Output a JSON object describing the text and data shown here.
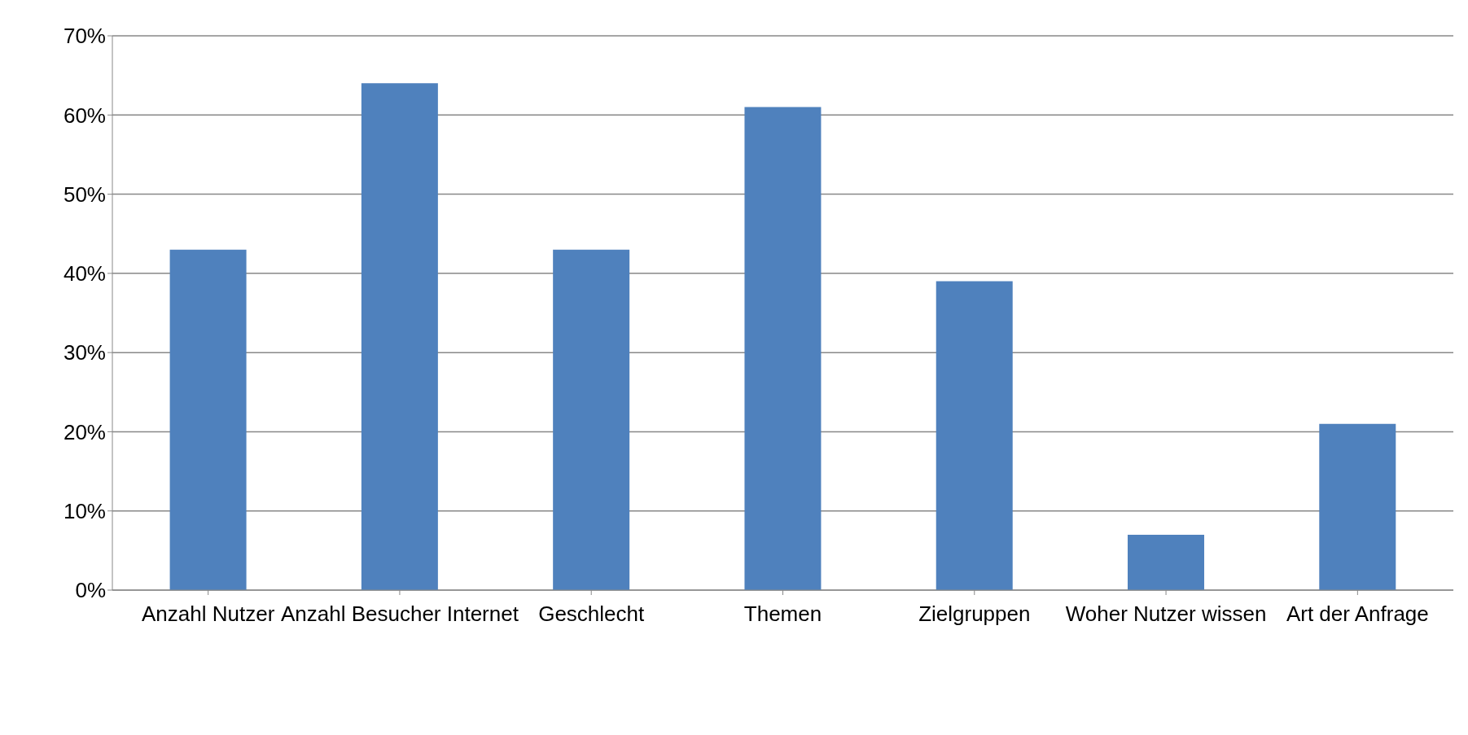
{
  "chart_data": {
    "type": "bar",
    "categories": [
      "Anzahl Nutzer",
      "Anzahl Besucher Internet",
      "Geschlecht",
      "Themen",
      "Zielgruppen",
      "Woher Nutzer wissen",
      "Art der Anfrage"
    ],
    "values": [
      43,
      64,
      43,
      61,
      39,
      7,
      21
    ],
    "color": "#4f81bd",
    "ylim": [
      0,
      70
    ],
    "yticks": [
      {
        "value": 0,
        "label": "0%"
      },
      {
        "value": 10,
        "label": "10%"
      },
      {
        "value": 20,
        "label": "20%"
      },
      {
        "value": 30,
        "label": "30%"
      },
      {
        "value": 40,
        "label": "40%"
      },
      {
        "value": 50,
        "label": "50%"
      },
      {
        "value": 60,
        "label": "60%"
      },
      {
        "value": 70,
        "label": "70%"
      }
    ],
    "grid": "y",
    "legend": false
  }
}
